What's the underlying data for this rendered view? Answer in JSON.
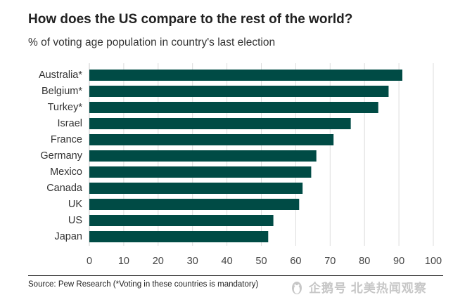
{
  "header": {
    "title": "How does the US compare to the rest of the world?",
    "subtitle": "% of voting age population in country's last election"
  },
  "footer": {
    "source": "Source: Pew Research (*Voting in these countries is mandatory)",
    "watermark": "企鹅号 北美热闻观察"
  },
  "colors": {
    "bar": "#004b45",
    "grid": "#dcdcdc",
    "text": "#222222"
  },
  "chart_data": {
    "type": "bar",
    "orientation": "horizontal",
    "title": "How does the US compare to the rest of the world?",
    "subtitle": "% of voting age population in country's last election",
    "categories": [
      "Australia*",
      "Belgium*",
      "Turkey*",
      "Israel",
      "France",
      "Germany",
      "Mexico",
      "Canada",
      "UK",
      "US",
      "Japan"
    ],
    "values": [
      91,
      87,
      84,
      76,
      71,
      66,
      64.5,
      62,
      61,
      53.5,
      52
    ],
    "xlim": [
      0,
      100
    ],
    "xticks": [
      0,
      10,
      20,
      30,
      40,
      50,
      60,
      70,
      80,
      90,
      100
    ],
    "xlabel": "",
    "ylabel": "",
    "grid": true,
    "legend": "none"
  }
}
